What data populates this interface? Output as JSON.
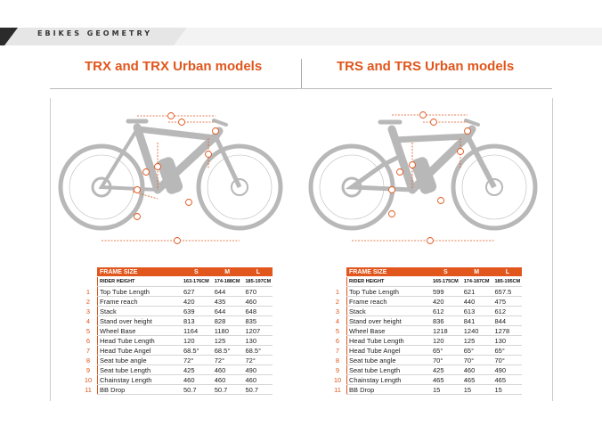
{
  "banner": {
    "text": "EBIKES GEOMETRY"
  },
  "left": {
    "title": "TRX and TRX Urban models",
    "table": {
      "header": [
        "FRAME SIZE",
        "S",
        "M",
        "L"
      ],
      "rider_height": [
        "RIDER HEIGHT",
        "163-176CM",
        "174-188CM",
        "185-197CM"
      ],
      "rows": [
        {
          "n": "1",
          "label": "Top Tube Length",
          "s": "627",
          "m": "644",
          "l": "670"
        },
        {
          "n": "2",
          "label": "Frame reach",
          "s": "420",
          "m": "435",
          "l": "460"
        },
        {
          "n": "3",
          "label": "Stack",
          "s": "639",
          "m": "644",
          "l": "648"
        },
        {
          "n": "4",
          "label": "Stand over height",
          "s": "813",
          "m": "828",
          "l": "835"
        },
        {
          "n": "5",
          "label": "Wheel Base",
          "s": "1164",
          "m": "1180",
          "l": "1207"
        },
        {
          "n": "6",
          "label": "Head Tube Length",
          "s": "120",
          "m": "125",
          "l": "130"
        },
        {
          "n": "7",
          "label": "Head Tube Angel",
          "s": "68.5°",
          "m": "68.5°",
          "l": "68.5°"
        },
        {
          "n": "8",
          "label": "Seat tube angle",
          "s": "72°",
          "m": "72°",
          "l": "72°"
        },
        {
          "n": "9",
          "label": "Seat tube Length",
          "s": "425",
          "m": "460",
          "l": "490"
        },
        {
          "n": "10",
          "label": "Chainstay Length",
          "s": "460",
          "m": "460",
          "l": "460"
        },
        {
          "n": "11",
          "label": "BB Drop",
          "s": "50.7",
          "m": "50.7",
          "l": "50.7"
        }
      ]
    }
  },
  "right": {
    "title": "TRS and TRS Urban models",
    "table": {
      "header": [
        "FRAME SIZE",
        "S",
        "M",
        "L"
      ],
      "rider_height": [
        "RIDER HEIGHT",
        "165-175CM",
        "174-187CM",
        "185-195CM"
      ],
      "rows": [
        {
          "n": "1",
          "label": "Top Tube Length",
          "s": "599",
          "m": "621",
          "l": "657.5"
        },
        {
          "n": "2",
          "label": "Frame reach",
          "s": "420",
          "m": "440",
          "l": "475"
        },
        {
          "n": "3",
          "label": "Stack",
          "s": "612",
          "m": "613",
          "l": "612"
        },
        {
          "n": "4",
          "label": "Stand over height",
          "s": "836",
          "m": "841",
          "l": "844"
        },
        {
          "n": "5",
          "label": "Wheel Base",
          "s": "1218",
          "m": "1240",
          "l": "1278"
        },
        {
          "n": "6",
          "label": "Head Tube Length",
          "s": "120",
          "m": "125",
          "l": "130"
        },
        {
          "n": "7",
          "label": "Head Tube Angel",
          "s": "65°",
          "m": "65°",
          "l": "65°"
        },
        {
          "n": "8",
          "label": "Seat tube angle",
          "s": "70°",
          "m": "70°",
          "l": "70°"
        },
        {
          "n": "9",
          "label": "Seat tube Length",
          "s": "425",
          "m": "460",
          "l": "490"
        },
        {
          "n": "10",
          "label": "Chainstay Length",
          "s": "465",
          "m": "465",
          "l": "465"
        },
        {
          "n": "11",
          "label": "BB Drop",
          "s": "15",
          "m": "15",
          "l": "15"
        }
      ]
    }
  },
  "colors": {
    "accent": "#e0561c",
    "bike_gray": "#b8b8b8"
  }
}
